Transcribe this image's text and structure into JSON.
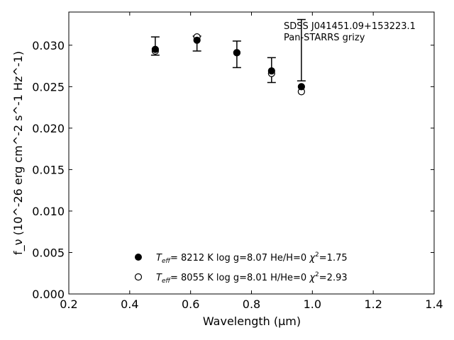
{
  "chart_data": {
    "type": "scatter",
    "xlabel": "Wavelength (μm)",
    "ylabel": "f_ν (10^-26 erg cm^-2 s^-1 Hz^-1)",
    "xlim": [
      0.2,
      1.4
    ],
    "ylim": [
      0.0,
      0.034
    ],
    "x_ticks": [
      "0.2",
      "0.4",
      "0.6",
      "0.8",
      "1.0",
      "1.2",
      "1.4"
    ],
    "y_ticks": [
      "0.000",
      "0.005",
      "0.010",
      "0.015",
      "0.020",
      "0.025",
      "0.030"
    ],
    "x_tick_values": [
      0.2,
      0.4,
      0.6,
      0.8,
      1.0,
      1.2,
      1.4
    ],
    "y_tick_values": [
      0.0,
      0.005,
      0.01,
      0.015,
      0.02,
      0.025,
      0.03
    ],
    "annotation": [
      "SDSS J041451.09+153223.1",
      "Pan-STARRS grizy"
    ],
    "grid": false,
    "legend_placement": "lower-center",
    "observed": {
      "x": [
        0.484,
        0.621,
        0.752,
        0.866,
        0.964
      ],
      "y": [
        0.0299,
        0.0302,
        0.0289,
        0.027,
        0.0294
      ],
      "yerr": [
        0.0011,
        0.0009,
        0.0016,
        0.0015,
        0.0037
      ]
    },
    "series": [
      {
        "marker": "filled",
        "x": [
          0.484,
          0.621,
          0.752,
          0.866,
          0.964
        ],
        "y": [
          0.0295,
          0.0306,
          0.0291,
          0.0269,
          0.025
        ],
        "legend": {
          "teff": "8212 K",
          "logg": "log g=8.07",
          "composition": "He/H=0",
          "chi2": "=1.75"
        }
      },
      {
        "marker": "open",
        "x": [
          0.484,
          0.621,
          0.752,
          0.866,
          0.964
        ],
        "y": [
          0.0293,
          0.031,
          0.0291,
          0.0266,
          0.0244
        ],
        "legend": {
          "teff": "8055 K",
          "logg": "log g=8.01",
          "composition": "H/He=0",
          "chi2": "=2.93"
        }
      }
    ]
  }
}
